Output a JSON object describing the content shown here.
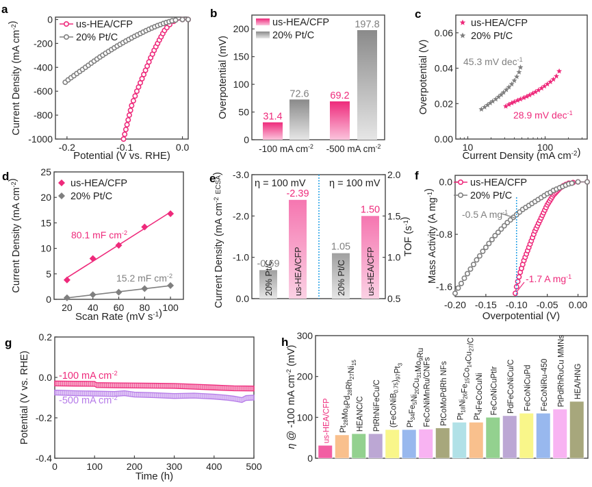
{
  "colors": {
    "pink": "#ee2a7b",
    "pink_light": "#f7a6c9",
    "gray": "#7f7f7f",
    "gray_light": "#d9d9d9",
    "purple": "#b57ae8",
    "blue_dotted": "#29a3e8",
    "axis": "#333333"
  },
  "chart_data": [
    {
      "panel": "a",
      "type": "line",
      "xlabel": "Potential (V vs. RHE)",
      "ylabel": "Current Density (mA cm-2)",
      "xlim": [
        -0.22,
        0.01
      ],
      "ylim": [
        -1000,
        20
      ],
      "xticks": [
        -0.2,
        -0.1,
        0.0
      ],
      "xtick_labels": [
        "-0.2",
        "-0.1",
        "0.0"
      ],
      "yticks": [
        0,
        -200,
        -400,
        -600,
        -800,
        -1000
      ],
      "ytick_labels": [
        "0",
        "-200",
        "-400",
        "-600",
        "-800",
        "-1000"
      ],
      "legend": "top-left",
      "series": [
        {
          "name": "us-HEA/CFP",
          "color": "#ee2a7b",
          "x": [
            -0.102,
            -0.1,
            -0.098,
            -0.096,
            -0.094,
            -0.092,
            -0.09,
            -0.088,
            -0.085,
            -0.082,
            -0.079,
            -0.076,
            -0.073,
            -0.07,
            -0.067,
            -0.064,
            -0.061,
            -0.058,
            -0.055,
            -0.052,
            -0.049,
            -0.046,
            -0.043,
            -0.04,
            -0.037,
            -0.034,
            -0.031,
            -0.027,
            -0.022,
            -0.015,
            0.0,
            0.01
          ],
          "y": [
            -1000,
            -960,
            -920,
            -880,
            -840,
            -800,
            -760,
            -720,
            -680,
            -640,
            -600,
            -565,
            -530,
            -495,
            -460,
            -425,
            -390,
            -355,
            -320,
            -290,
            -258,
            -228,
            -200,
            -172,
            -145,
            -118,
            -92,
            -68,
            -42,
            -15,
            0,
            0
          ]
        },
        {
          "name": "20% Pt/C",
          "color": "#7f7f7f",
          "x": [
            -0.203,
            -0.198,
            -0.193,
            -0.188,
            -0.183,
            -0.178,
            -0.173,
            -0.168,
            -0.163,
            -0.158,
            -0.153,
            -0.148,
            -0.143,
            -0.138,
            -0.133,
            -0.128,
            -0.123,
            -0.118,
            -0.113,
            -0.108,
            -0.103,
            -0.098,
            -0.093,
            -0.088,
            -0.083,
            -0.078,
            -0.073,
            -0.068,
            -0.063,
            -0.058,
            -0.053,
            -0.048,
            -0.043,
            -0.038,
            -0.033,
            -0.028,
            -0.023,
            -0.018,
            -0.012,
            0.0,
            0.01
          ],
          "y": [
            -525,
            -505,
            -487,
            -470,
            -452,
            -435,
            -418,
            -400,
            -383,
            -365,
            -348,
            -331,
            -314,
            -298,
            -282,
            -267,
            -252,
            -237,
            -222,
            -208,
            -194,
            -180,
            -167,
            -154,
            -141,
            -129,
            -117,
            -105,
            -93,
            -82,
            -71,
            -61,
            -51,
            -42,
            -33,
            -25,
            -18,
            -11,
            -5,
            0,
            0
          ]
        }
      ]
    },
    {
      "panel": "b",
      "type": "bar",
      "ylabel": "Overpotential (mV)",
      "ylim": [
        0,
        225
      ],
      "yticks": [
        0,
        50,
        100,
        150,
        200
      ],
      "ytick_labels": [
        "0",
        "50",
        "100",
        "150",
        "200"
      ],
      "categories": [
        "-100 mA cm-2",
        "-500 mA cm-2"
      ],
      "legend": "top-left",
      "series": [
        {
          "name": "us-HEA/CFP",
          "color": "#ee2a7b",
          "values": [
            31.4,
            69.2
          ],
          "labels": [
            "31.4",
            "69.2"
          ]
        },
        {
          "name": "20% Pt/C",
          "color": "#7f7f7f",
          "values": [
            72.6,
            197.8
          ],
          "labels": [
            "72.6",
            "197.8"
          ]
        }
      ]
    },
    {
      "panel": "c",
      "type": "scatter",
      "xscale": "log",
      "xlabel": "Current Density (mA cm-2)",
      "ylabel": "Overpotential (V)",
      "xlim": [
        7,
        350
      ],
      "ylim": [
        0,
        0.07
      ],
      "xticks": [
        10,
        100
      ],
      "xtick_labels": [
        "10",
        "100"
      ],
      "yticks": [
        0,
        0.02,
        0.04,
        0.06
      ],
      "ytick_labels": [
        "0.00",
        "0.02",
        "0.04",
        "0.06"
      ],
      "legend": "top-left",
      "annotations": [
        {
          "text": "45.3 mV dec-1",
          "color": "#7f7f7f"
        },
        {
          "text": "28.9 mV dec-1",
          "color": "#ee2a7b"
        }
      ],
      "series": [
        {
          "name": "us-HEA/CFP",
          "color": "#ee2a7b",
          "x": [
            31,
            34,
            37,
            40,
            44,
            48,
            53,
            58,
            63,
            69,
            75,
            82,
            90,
            98,
            107,
            117,
            128,
            140,
            152
          ],
          "y": [
            0.0185,
            0.0195,
            0.0203,
            0.021,
            0.0218,
            0.0225,
            0.0233,
            0.024,
            0.0248,
            0.0257,
            0.0266,
            0.0276,
            0.0287,
            0.0298,
            0.031,
            0.0323,
            0.0337,
            0.0355,
            0.0383
          ]
        },
        {
          "name": "20% Pt/C",
          "color": "#7f7f7f",
          "x": [
            15,
            16.5,
            18,
            19.5,
            21,
            23,
            25,
            27,
            29,
            31.5,
            34,
            37,
            40,
            43,
            46,
            48
          ],
          "y": [
            0.0168,
            0.018,
            0.0192,
            0.0203,
            0.0213,
            0.0225,
            0.0238,
            0.025,
            0.0263,
            0.0278,
            0.0293,
            0.031,
            0.033,
            0.0352,
            0.0378,
            0.0405
          ]
        }
      ]
    },
    {
      "panel": "d",
      "type": "scatter",
      "xlabel": "Scan Rate (mV s-1)",
      "ylabel": "Current Density (mA cm-2)",
      "xlim": [
        10,
        110
      ],
      "ylim": [
        0,
        25
      ],
      "xticks": [
        20,
        40,
        60,
        80,
        100
      ],
      "xtick_labels": [
        "20",
        "40",
        "60",
        "80",
        "100"
      ],
      "yticks": [
        0,
        5,
        10,
        15,
        20,
        25
      ],
      "ytick_labels": [
        "0",
        "5",
        "10",
        "15",
        "20",
        "25"
      ],
      "legend": "top-left",
      "annotations": [
        {
          "text": "80.1 mF cm-2",
          "color": "#ee2a7b"
        },
        {
          "text": "15.2 mF cm-2",
          "color": "#7f7f7f"
        }
      ],
      "series": [
        {
          "name": "us-HEA/CFP",
          "color": "#ee2a7b",
          "x": [
            20,
            40,
            60,
            80,
            100
          ],
          "y": [
            3.8,
            8.0,
            10.6,
            14.2,
            16.8
          ]
        },
        {
          "name": "20% Pt/C",
          "color": "#7f7f7f",
          "x": [
            20,
            40,
            60,
            80,
            100
          ],
          "y": [
            0.3,
            0.9,
            1.4,
            2.1,
            2.7
          ]
        }
      ]
    },
    {
      "panel": "e",
      "type": "bar",
      "ylabel": "Current Density (mA cm-2 ECSA)",
      "y2label": "TOF (s-1)",
      "ylim": [
        0,
        -3.0
      ],
      "y2lim": [
        0.5,
        2.0
      ],
      "yticks": [
        0,
        -1.0,
        -2.0,
        -3.0
      ],
      "ytick_labels": [
        "0.0",
        "-1.0",
        "-2.0",
        "-3.0"
      ],
      "y2ticks": [
        0.5,
        1.0,
        1.5,
        2.0
      ],
      "y2tick_labels": [
        "0.5",
        "1.0",
        "1.5",
        "2.0"
      ],
      "annotations": [
        {
          "text": "η = 100 mV"
        },
        {
          "text": "η = 100 mV"
        }
      ],
      "left": [
        {
          "name": "20% Pt/C",
          "color": "#7f7f7f",
          "value": -0.69,
          "label": "-0.69"
        },
        {
          "name": "us-HEA/CFP",
          "color": "#ee2a7b",
          "value": -2.39,
          "label": "-2.39"
        }
      ],
      "right": [
        {
          "name": "20% Pt/C",
          "color": "#7f7f7f",
          "value": 1.05,
          "label": "1.05"
        },
        {
          "name": "us-HEA/CFP",
          "color": "#ee2a7b",
          "value": 1.5,
          "label": "1.50"
        }
      ]
    },
    {
      "panel": "f",
      "type": "line",
      "xlabel": "Overpotential (V)",
      "ylabel": "Mass Activity (A mg-1)",
      "xlim": [
        -0.2,
        0.015
      ],
      "ylim": [
        -1.75,
        0.1
      ],
      "xticks": [
        -0.2,
        -0.15,
        -0.1,
        -0.05,
        0.0
      ],
      "xtick_labels": [
        "-0.20",
        "-0.15",
        "-0.10",
        "-0.05",
        "0.00"
      ],
      "yticks": [
        0,
        -0.8,
        -1.6
      ],
      "ytick_labels": [
        "0.0",
        "-0.8",
        "-1.6"
      ],
      "legend": "top-left",
      "vline_x": -0.1,
      "annotations": [
        {
          "text": "-0.5 A mg-1",
          "color": "#7f7f7f"
        },
        {
          "text": "-1.7 A mg-1",
          "color": "#ee2a7b"
        }
      ],
      "series": [
        {
          "name": "us-HEA/CFP",
          "color": "#ee2a7b",
          "x": [
            -0.102,
            -0.1,
            -0.098,
            -0.096,
            -0.094,
            -0.092,
            -0.09,
            -0.088,
            -0.086,
            -0.084,
            -0.082,
            -0.08,
            -0.078,
            -0.076,
            -0.074,
            -0.072,
            -0.07,
            -0.068,
            -0.066,
            -0.064,
            -0.062,
            -0.06,
            -0.058,
            -0.056,
            -0.054,
            -0.052,
            -0.05,
            -0.048,
            -0.046,
            -0.044,
            -0.042,
            -0.04,
            -0.038,
            -0.036,
            -0.034,
            -0.032,
            -0.03,
            -0.027,
            -0.024,
            -0.02,
            -0.015,
            -0.008,
            0.0,
            0.015
          ],
          "y": [
            -1.7,
            -1.6,
            -1.52,
            -1.45,
            -1.38,
            -1.32,
            -1.26,
            -1.2,
            -1.15,
            -1.1,
            -1.05,
            -1.0,
            -0.95,
            -0.9,
            -0.85,
            -0.8,
            -0.75,
            -0.71,
            -0.67,
            -0.63,
            -0.59,
            -0.55,
            -0.51,
            -0.47,
            -0.43,
            -0.39,
            -0.35,
            -0.32,
            -0.29,
            -0.26,
            -0.23,
            -0.2,
            -0.18,
            -0.16,
            -0.14,
            -0.12,
            -0.1,
            -0.08,
            -0.06,
            -0.04,
            -0.02,
            -0.01,
            0.0,
            0.0
          ]
        },
        {
          "name": "20% Pt/C",
          "color": "#7f7f7f",
          "x": [
            -0.2,
            -0.195,
            -0.19,
            -0.185,
            -0.18,
            -0.175,
            -0.17,
            -0.165,
            -0.16,
            -0.155,
            -0.15,
            -0.145,
            -0.14,
            -0.135,
            -0.13,
            -0.125,
            -0.12,
            -0.115,
            -0.11,
            -0.105,
            -0.1,
            -0.095,
            -0.09,
            -0.085,
            -0.08,
            -0.075,
            -0.07,
            -0.065,
            -0.06,
            -0.055,
            -0.05,
            -0.045,
            -0.04,
            -0.035,
            -0.03,
            -0.025,
            -0.02,
            -0.015,
            -0.01,
            0.0,
            0.015
          ],
          "y": [
            -1.7,
            -1.62,
            -1.55,
            -1.47,
            -1.4,
            -1.33,
            -1.26,
            -1.19,
            -1.13,
            -1.06,
            -1.0,
            -0.94,
            -0.88,
            -0.82,
            -0.77,
            -0.72,
            -0.67,
            -0.62,
            -0.58,
            -0.54,
            -0.5,
            -0.46,
            -0.42,
            -0.39,
            -0.36,
            -0.33,
            -0.3,
            -0.27,
            -0.24,
            -0.21,
            -0.18,
            -0.16,
            -0.13,
            -0.11,
            -0.09,
            -0.07,
            -0.05,
            -0.03,
            -0.02,
            0.0,
            0.0
          ]
        }
      ]
    },
    {
      "panel": "g",
      "type": "line",
      "xlabel": "Time (h)",
      "ylabel": "Potential (V vs. RHE)",
      "xlim": [
        0,
        500
      ],
      "ylim": [
        -0.4,
        0.2
      ],
      "xticks": [
        0,
        100,
        200,
        300,
        400,
        500
      ],
      "xtick_labels": [
        "0",
        "100",
        "200",
        "300",
        "400",
        "500"
      ],
      "yticks": [
        0.2,
        0.0,
        -0.2,
        -0.4
      ],
      "ytick_labels": [
        "0.2",
        "0.0",
        "-0.2",
        "-0.4"
      ],
      "series": [
        {
          "name": "-100 mA cm-2",
          "color": "#ee2a7b",
          "x": [
            0,
            50,
            100,
            105,
            150,
            200,
            250,
            300,
            350,
            400,
            450,
            500
          ],
          "y": [
            -0.03,
            -0.031,
            -0.032,
            -0.038,
            -0.039,
            -0.04,
            -0.041,
            -0.042,
            -0.046,
            -0.05,
            -0.054,
            -0.055
          ]
        },
        {
          "name": "-500 mA cm-2",
          "color": "#b57ae8",
          "x": [
            0,
            50,
            100,
            150,
            175,
            200,
            250,
            300,
            350,
            400,
            430,
            450,
            470,
            480,
            500
          ],
          "y": [
            -0.075,
            -0.078,
            -0.08,
            -0.082,
            -0.078,
            -0.085,
            -0.088,
            -0.092,
            -0.09,
            -0.095,
            -0.1,
            -0.105,
            -0.112,
            -0.102,
            -0.1
          ]
        }
      ]
    },
    {
      "panel": "h",
      "type": "bar",
      "ylabel": "η @ -100 mA cm-2 (mV)",
      "ylim": [
        0,
        300
      ],
      "yticks": [
        0,
        100,
        200,
        300
      ],
      "ytick_labels": [
        "0",
        "100",
        "200",
        "300"
      ],
      "categories": [
        "us-HEA/CFP",
        "Pt28Mo6Pd28Rh27Ni15",
        "HEANC/C",
        "PtRhNiFeCu/C",
        "(FeCoNiB0.75)97Pt3",
        "Pt34Fe5Ni20Cu31Mo9Ru",
        "FeCoNiMnRu/CNFs",
        "PtCoMoPdRh NFs",
        "Pt18Ni26Fe15Co14Cu27/C",
        "Pt4FeCoCuNi",
        "FeCoNiCuPtIr",
        "PdFeCoNiCu/C",
        "FeCoNiCuPd",
        "FeCoNiRu-450",
        "PtPdRhRuCu MMNs",
        "HEA/HNG"
      ],
      "values": [
        31.4,
        57,
        60,
        60,
        70,
        70,
        71,
        74,
        88,
        88,
        100,
        104,
        110,
        110,
        120,
        139
      ],
      "colors": [
        "#f25ea3",
        "#f9c08d",
        "#93d18f",
        "#bca7d4",
        "#f9f68a",
        "#98b8ee",
        "#f8b3f2",
        "#a7a77c",
        "#b1e1e7",
        "#f9c08d",
        "#93d18f",
        "#bca7d4",
        "#f9f68a",
        "#98b8ee",
        "#f8b3f2",
        "#a7a77c"
      ]
    }
  ],
  "panel_letters": [
    "a",
    "b",
    "c",
    "d",
    "e",
    "f",
    "g",
    "h"
  ]
}
